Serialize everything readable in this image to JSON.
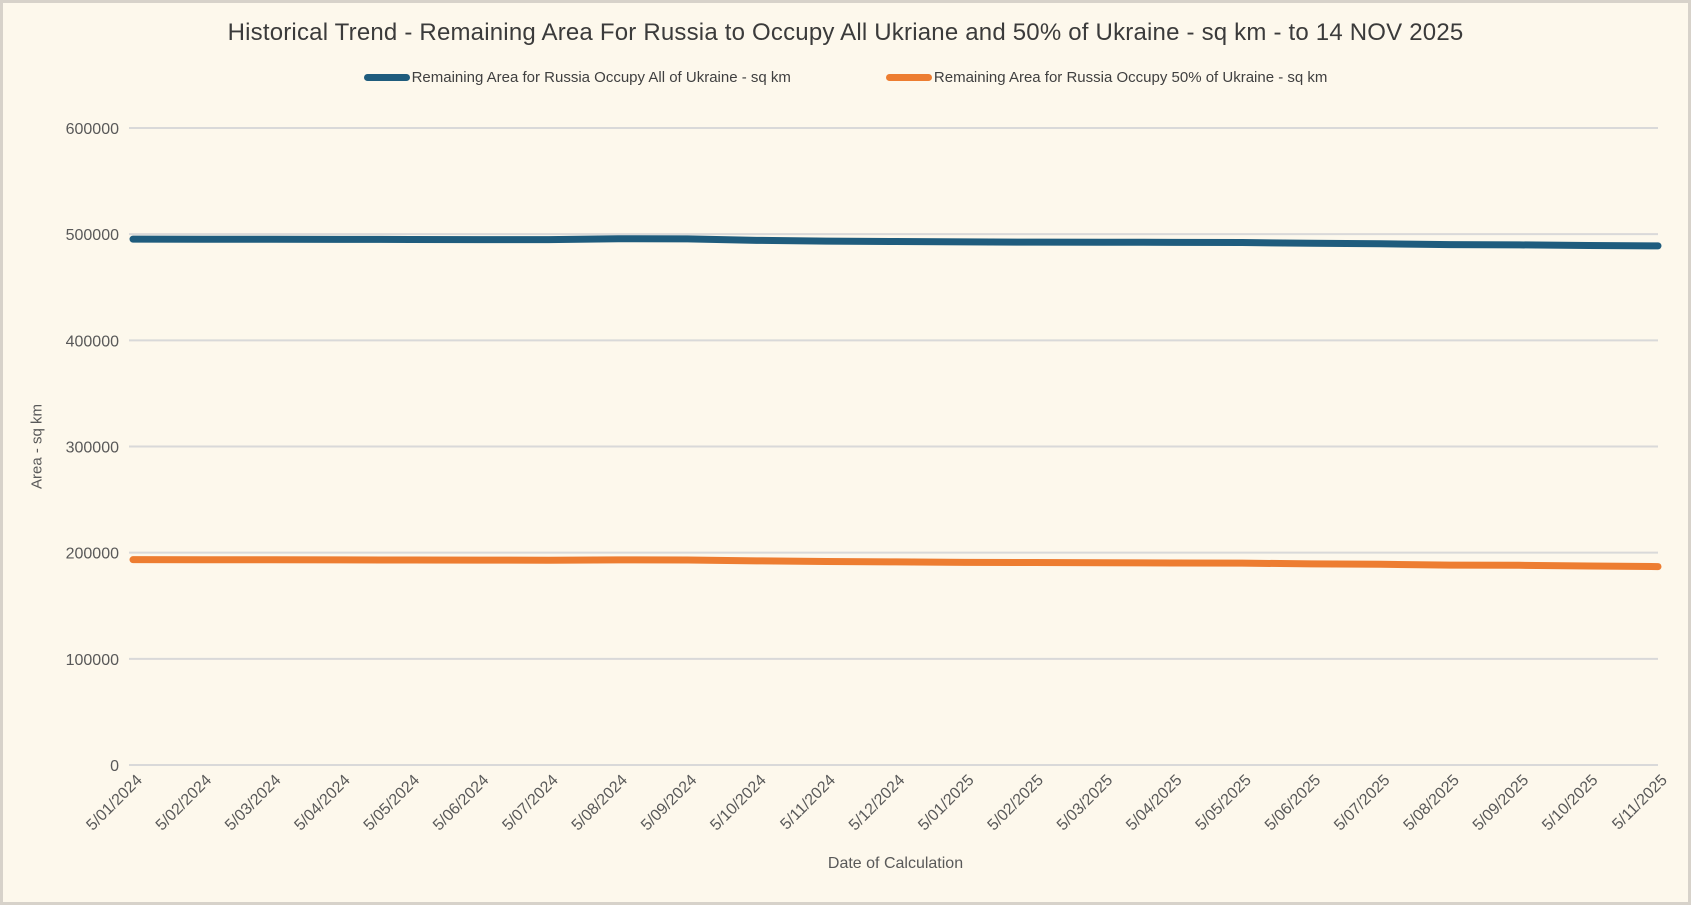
{
  "title": "Historical Trend - Remaining Area For Russia to Occupy All Ukriane and 50% of Ukraine - sq km - to 14 NOV 2025",
  "colors": {
    "background": "#fdf8ec",
    "frame": "#d7d2ca",
    "grid": "#d9d9d9",
    "title_text": "#3b3b3b",
    "tick_text": "#595959",
    "series_all_ukraine": "#1f5c7d",
    "series_half_ukraine": "#ed7d31"
  },
  "chart_data": {
    "type": "line",
    "title": "Historical Trend - Remaining Area For Russia to Occupy All Ukriane and 50% of Ukraine - sq km - to 14 NOV 2025",
    "xlabel": "Date of Calculation",
    "ylabel": "Area - sq km",
    "ylim": [
      0,
      600000
    ],
    "ytick_interval": 100000,
    "yticks": [
      0,
      100000,
      200000,
      300000,
      400000,
      500000,
      600000
    ],
    "grid": true,
    "legend_position": "top",
    "categories": [
      "5/01/2024",
      "5/02/2024",
      "5/03/2024",
      "5/04/2024",
      "5/05/2024",
      "5/06/2024",
      "5/07/2024",
      "5/08/2024",
      "5/09/2024",
      "5/10/2024",
      "5/11/2024",
      "5/12/2024",
      "5/01/2025",
      "5/02/2025",
      "5/03/2025",
      "5/04/2025",
      "5/05/2025",
      "5/06/2025",
      "5/07/2025",
      "5/08/2025",
      "5/09/2025",
      "5/10/2025",
      "5/11/2025"
    ],
    "series": [
      {
        "name": "Remaining Area for Russia Occupy All of Ukraine - sq km",
        "color": "#1f5c7d",
        "values": [
          495300,
          495250,
          495200,
          495100,
          495000,
          494900,
          494800,
          495700,
          495600,
          494200,
          493500,
          493100,
          492700,
          492500,
          492400,
          492300,
          492100,
          491400,
          491000,
          490100,
          489900,
          489300,
          489000
        ]
      },
      {
        "name": "Remaining Area for Russia Occupy 50% of Ukraine - sq km",
        "color": "#ed7d31",
        "values": [
          193400,
          193350,
          193300,
          193200,
          193100,
          193000,
          192900,
          193200,
          193100,
          192300,
          191700,
          191300,
          190900,
          190700,
          190500,
          190300,
          190100,
          189500,
          189100,
          188300,
          188100,
          187400,
          186900
        ]
      }
    ]
  }
}
